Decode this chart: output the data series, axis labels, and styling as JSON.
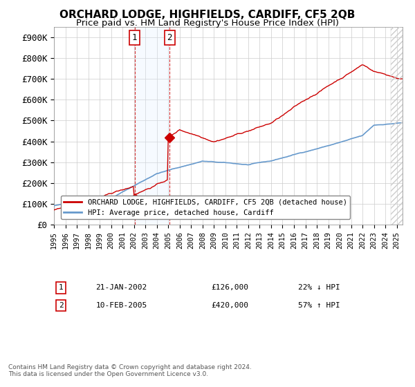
{
  "title": "ORCHARD LODGE, HIGHFIELDS, CARDIFF, CF5 2QB",
  "subtitle": "Price paid vs. HM Land Registry's House Price Index (HPI)",
  "legend_line1": "ORCHARD LODGE, HIGHFIELDS, CARDIFF, CF5 2QB (detached house)",
  "legend_line2": "HPI: Average price, detached house, Cardiff",
  "transaction1_date": "21-JAN-2002",
  "transaction1_price": "£126,000",
  "transaction1_hpi": "22% ↓ HPI",
  "transaction1_x": 2002.06,
  "transaction1_y": 126000,
  "transaction2_date": "10-FEB-2005",
  "transaction2_price": "£420,000",
  "transaction2_hpi": "57% ↑ HPI",
  "transaction2_x": 2005.12,
  "transaction2_y": 420000,
  "hpi_color": "#6699cc",
  "property_color": "#cc0000",
  "background_color": "#ffffff",
  "grid_color": "#cccccc",
  "shading_color": "#ddeeff",
  "xmin": 1995,
  "xmax": 2025.5,
  "ymin": 0,
  "ymax": 950000,
  "yticks": [
    0,
    100000,
    200000,
    300000,
    400000,
    500000,
    600000,
    700000,
    800000,
    900000
  ],
  "ytick_labels": [
    "£0",
    "£100K",
    "£200K",
    "£300K",
    "£400K",
    "£500K",
    "£600K",
    "£700K",
    "£800K",
    "£900K"
  ],
  "footer_line1": "Contains HM Land Registry data © Crown copyright and database right 2024.",
  "footer_line2": "This data is licensed under the Open Government Licence v3.0."
}
